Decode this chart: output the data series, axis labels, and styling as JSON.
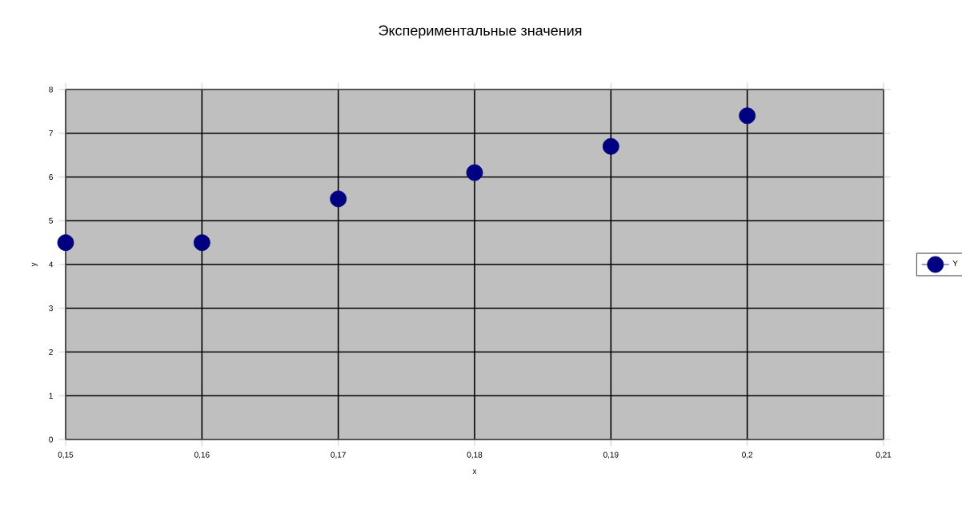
{
  "chart_data": {
    "type": "scatter",
    "title": "Экспериментальные значения",
    "xlabel": "x",
    "ylabel": "y",
    "x": [
      0.15,
      0.16,
      0.17,
      0.18,
      0.19,
      0.2
    ],
    "series": [
      {
        "name": "Y",
        "color": "#000080",
        "values": [
          4.5,
          4.5,
          5.5,
          6.1,
          6.7,
          7.4
        ]
      }
    ],
    "xlim": [
      0.15,
      0.21
    ],
    "xticks": [
      {
        "value": 0.15,
        "label": "0,15"
      },
      {
        "value": 0.16,
        "label": "0,16"
      },
      {
        "value": 0.17,
        "label": "0,17"
      },
      {
        "value": 0.18,
        "label": "0,18"
      },
      {
        "value": 0.19,
        "label": "0,19"
      },
      {
        "value": 0.2,
        "label": "0,2"
      },
      {
        "value": 0.21,
        "label": "0,21"
      }
    ],
    "ylim": [
      0,
      8
    ],
    "yticks": [
      0,
      1,
      2,
      3,
      4,
      5,
      6,
      7,
      8
    ],
    "grid": true,
    "legend": "right",
    "marker": "circle"
  }
}
